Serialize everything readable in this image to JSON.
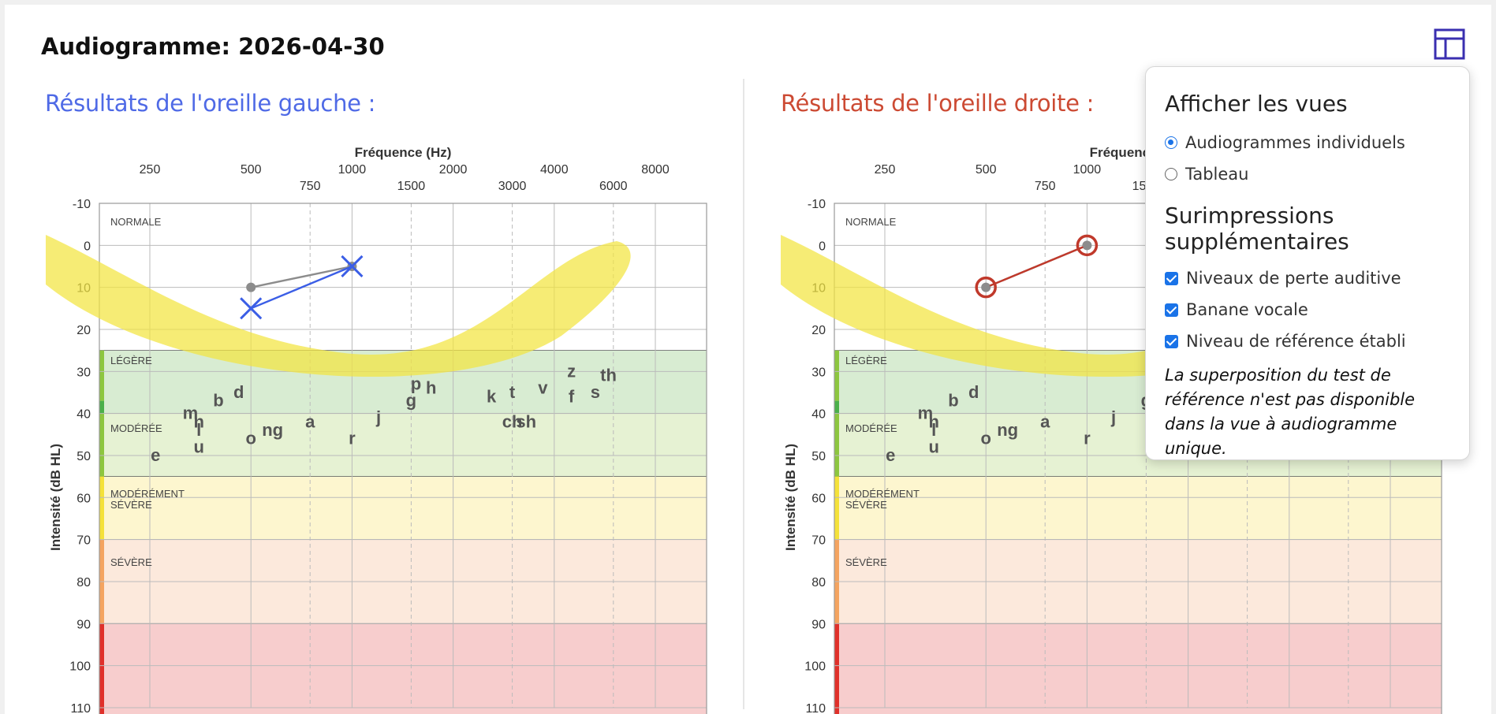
{
  "title": "Audiogramme: 2026-04-30",
  "left": {
    "heading": "Résultats de l'oreille gauche :"
  },
  "right": {
    "heading": "Résultats de l'oreille droite :"
  },
  "chart": {
    "x_title": "Fréquence (Hz)",
    "y_title": "Intensité (dB HL)",
    "freq_top": [
      "250",
      "500",
      "1000",
      "2000",
      "4000",
      "8000"
    ],
    "freq_bottom": [
      "750",
      "1500",
      "3000",
      "6000"
    ],
    "db_ticks": [
      "-10",
      "0",
      "10",
      "20",
      "30",
      "40",
      "50",
      "60",
      "70",
      "80",
      "90",
      "100",
      "110"
    ],
    "zones": [
      "NORMALE",
      "LÉGÈRE",
      "MODÉRÉE",
      "MODÉRÉMENT SÉVÈRE",
      "SÉVÈRE"
    ],
    "zone_colors": [
      "#8dc63f",
      "#4bb04b",
      "#8dc63f",
      "#f4e13a",
      "#f4a460",
      "#e0302a"
    ],
    "banana_color": "#f2e540",
    "phonemes": [
      "m",
      "b",
      "d",
      "n",
      "l",
      "u",
      "o",
      "ng",
      "a",
      "e",
      "r",
      "j",
      "p",
      "h",
      "g",
      "k",
      "t",
      "ch",
      "sh",
      "v",
      "z",
      "f",
      "s",
      "th"
    ]
  },
  "chart_data": [
    {
      "type": "line",
      "title": "Résultats de l'oreille gauche :",
      "xlabel": "Fréquence (Hz)",
      "ylabel": "Intensité (dB HL)",
      "ylim": [
        -10,
        110
      ],
      "series": [
        {
          "x": [
            500,
            1000
          ],
          "y": [
            15,
            5
          ],
          "color": "#3b5ee6",
          "marker": "x"
        },
        {
          "x": [
            500,
            1000
          ],
          "y": [
            10,
            5
          ],
          "color": "#8c8c8c",
          "marker": "dot"
        }
      ]
    },
    {
      "type": "line",
      "title": "Résultats de l'oreille droite :",
      "xlabel": "Fréquence (Hz)",
      "ylabel": "Intensité (dB HL)",
      "ylim": [
        -10,
        110
      ],
      "series": [
        {
          "x": [
            500,
            1000
          ],
          "y": [
            10,
            0
          ],
          "color": "#c0392b",
          "marker": "circle"
        },
        {
          "x": [
            500,
            1000
          ],
          "y": [
            10,
            0
          ],
          "color": "#8c8c8c",
          "marker": "dot"
        }
      ]
    }
  ],
  "panel": {
    "views_title": "Afficher les vues",
    "views": [
      {
        "label": "Audiogrammes individuels",
        "selected": true
      },
      {
        "label": "Tableau",
        "selected": false
      }
    ],
    "overlays_title_1": "Surimpressions",
    "overlays_title_2": "supplémentaires",
    "overlays": [
      {
        "label": "Niveaux de perte auditive",
        "checked": true
      },
      {
        "label": "Banane vocale",
        "checked": true
      },
      {
        "label": "Niveau de référence établi",
        "checked": true
      }
    ],
    "note": "La superposition du test de référence n'est pas disponible dans la vue à audiogramme unique."
  },
  "colors": {
    "left": "#4f6ae6",
    "right": "#cc4a33",
    "accent": "#1a73e8",
    "layout_icon": "#3a2fb0"
  },
  "icons": {
    "layout": "layout-panel-icon"
  }
}
